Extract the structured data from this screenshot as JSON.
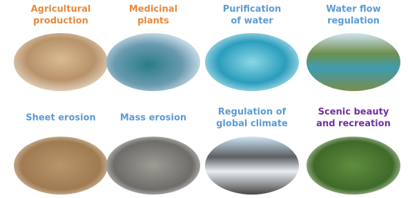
{
  "items": [
    {
      "lines": [
        "Agricultural",
        "production"
      ]
    },
    {
      "lines": [
        "Medicinal",
        "plants"
      ]
    },
    {
      "lines": [
        "Purification",
        "of water"
      ]
    },
    {
      "lines": [
        "Water flow",
        "regulation"
      ]
    },
    {
      "lines": [
        "Sheet erosion"
      ]
    },
    {
      "lines": [
        "Mass erosion"
      ]
    },
    {
      "lines": [
        "Regulation of",
        "global climate"
      ]
    },
    {
      "lines": [
        "Scenic beauty",
        "and recreation"
      ]
    }
  ]
}
